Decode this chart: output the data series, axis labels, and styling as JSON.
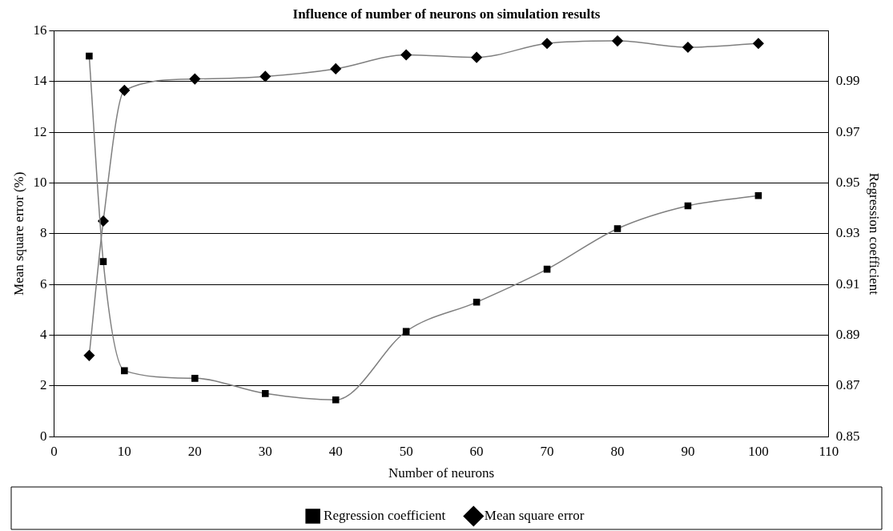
{
  "chart_data": {
    "type": "line",
    "title": "Influence of number of neurons on simulation results",
    "xlabel": "Number of neurons",
    "ylabel": "Mean square error (%)",
    "y2label": "Regression coefficient",
    "x": [
      5,
      7,
      10,
      20,
      30,
      40,
      50,
      60,
      70,
      80,
      90,
      100
    ],
    "series": [
      {
        "name": "Regression coefficient",
        "color": "#000000",
        "marker": "square",
        "axis": "y2",
        "values": [
          1.0,
          0.919,
          0.876,
          0.873,
          0.867,
          0.8645,
          0.8915,
          0.903,
          0.916,
          0.932,
          0.941,
          0.945
        ]
      },
      {
        "name": "Mean square error",
        "color": "#000000",
        "marker": "diamond",
        "values": [
          3.2,
          8.5,
          13.65,
          14.1,
          14.2,
          14.5,
          15.05,
          14.95,
          15.5,
          15.6,
          15.35,
          15.5
        ]
      }
    ],
    "xlim": [
      0,
      110
    ],
    "xticks": [
      0,
      10,
      20,
      30,
      40,
      50,
      60,
      70,
      80,
      90,
      100,
      110
    ],
    "ylim": [
      0,
      16
    ],
    "yticks": [
      0,
      2,
      4,
      6,
      8,
      10,
      12,
      14,
      16
    ],
    "y2lim": [
      0.85,
      1.01
    ],
    "y2ticks": [
      {
        "value": 0.85,
        "label": "0.85"
      },
      {
        "value": 0.87,
        "label": "0.87"
      },
      {
        "value": 0.89,
        "label": "0.89"
      },
      {
        "value": 0.91,
        "label": "0.91"
      },
      {
        "value": 0.93,
        "label": "0.93"
      },
      {
        "value": 0.95,
        "label": "0.95"
      },
      {
        "value": 0.97,
        "label": "0.97"
      },
      {
        "value": 0.99,
        "label": "0.99"
      }
    ],
    "grid": "y",
    "legend": "bottom"
  }
}
